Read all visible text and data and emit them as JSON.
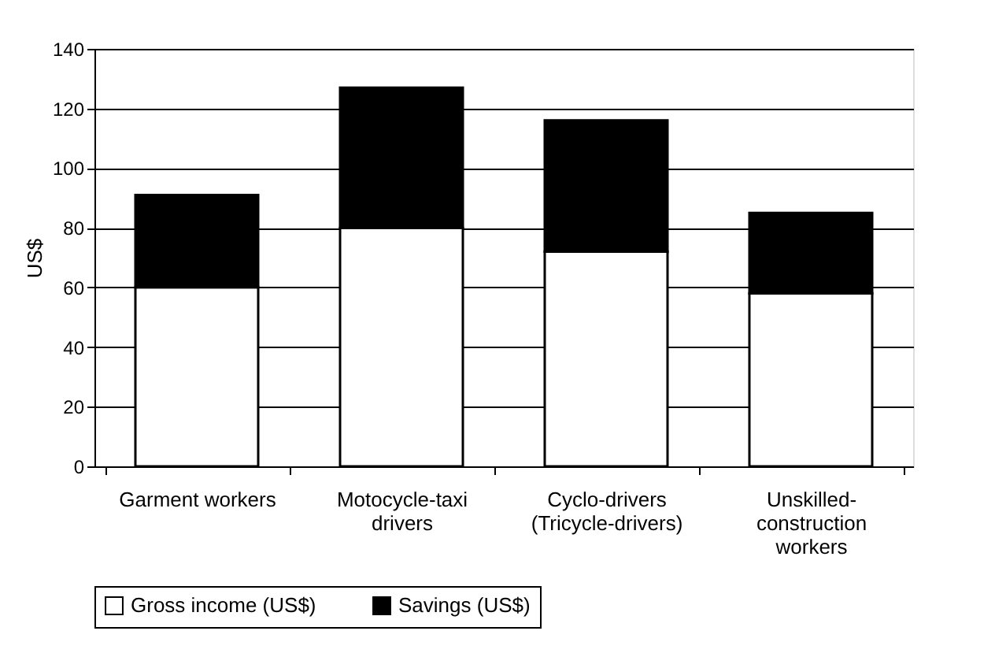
{
  "chart_data": {
    "type": "bar",
    "stacked": true,
    "ylabel": "US$",
    "categories": [
      "Garment workers",
      "Motocycle-taxi drivers",
      "Cyclo-drivers (Tricycle-drivers)",
      "Unskilled-construction workers"
    ],
    "series": [
      {
        "name": "Gross income  (US$)",
        "color": "#ffffff",
        "values": [
          60,
          80,
          72,
          58
        ]
      },
      {
        "name": "Savings (US$)",
        "color": "#000000",
        "values": [
          31,
          47,
          44,
          27
        ]
      }
    ],
    "ylim": [
      0,
      140
    ],
    "yticks": [
      0,
      20,
      40,
      60,
      80,
      100,
      120,
      140
    ],
    "grid": "y",
    "legend": "bottom left"
  }
}
